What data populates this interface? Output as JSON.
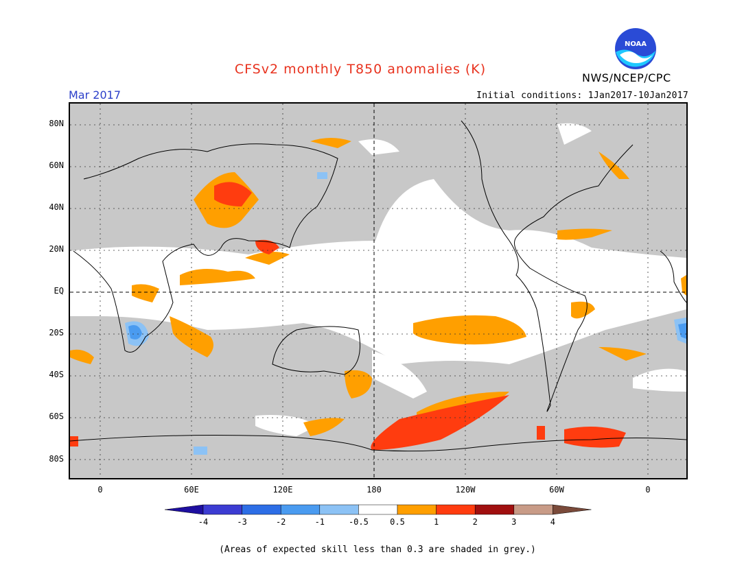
{
  "title": "CFSv2 monthly T850 anomalies (K)",
  "month": "Mar 2017",
  "initial_conditions": "Initial conditions: 1Jan2017-10Jan2017",
  "agency": "NWS/NCEP/CPC",
  "logo_text": "NOAA",
  "lat_labels": [
    "80N",
    "60N",
    "40N",
    "20N",
    "EQ",
    "20S",
    "40S",
    "60S",
    "80S"
  ],
  "lon_labels": [
    "0",
    "60E",
    "120E",
    "180",
    "120W",
    "60W",
    "0"
  ],
  "colorbar": {
    "ticks": [
      "-4",
      "-3",
      "-2",
      "-1",
      "-0.5",
      "0.5",
      "1",
      "2",
      "3",
      "4"
    ],
    "colors": [
      "#1e0fa0",
      "#3c3cd2",
      "#2d6ee6",
      "#4a9bf0",
      "#8cc2f5",
      "#ffffff",
      "#ff9f00",
      "#ff3c0f",
      "#a00f0f",
      "#c89b87",
      "#7a4a3a"
    ]
  },
  "skill_note": "(Areas of expected skill less than 0.3 are shaded in grey.)",
  "colors": {
    "title": "#e8321e",
    "month": "#2b3fc9",
    "low_skill_grey": "#c8c8c8"
  }
}
